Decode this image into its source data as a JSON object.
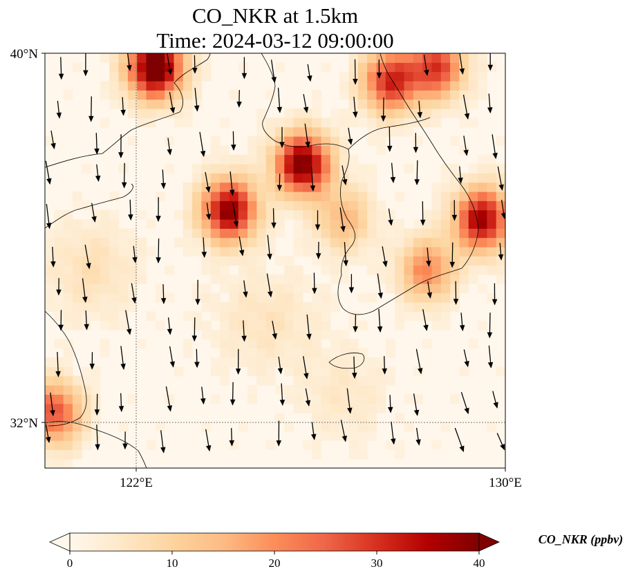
{
  "title_line1": "CO_NKR at 1.5km",
  "title_line2": "Time: 2024-03-12 09:00:00",
  "map": {
    "extent": {
      "lon": [
        120,
        130
      ],
      "lat": [
        31,
        40
      ]
    },
    "lat_ticks": [
      {
        "value": 40,
        "label": "40°N"
      },
      {
        "value": 32,
        "label": "32°N"
      }
    ],
    "lon_ticks": [
      {
        "value": 122,
        "label": "122°E"
      },
      {
        "value": 130,
        "label": "130°E"
      }
    ],
    "gridlines": {
      "lat": [
        32
      ],
      "lon": [
        122
      ]
    }
  },
  "colorbar": {
    "label": "CO_NKR (ppbv)",
    "ticks": [
      0,
      10,
      20,
      30,
      40
    ],
    "range": [
      0,
      40
    ],
    "extend": "both",
    "colormap": [
      "#fff7ec",
      "#fee8c8",
      "#fdd49e",
      "#fdbb84",
      "#fc8d59",
      "#ef6548",
      "#d7301f",
      "#b30000",
      "#7f0000"
    ]
  },
  "chart_data": {
    "type": "heatmap",
    "title": "CO_NKR at 1.5km\nTime: 2024-03-12 09:00:00",
    "variable": "CO_NKR",
    "units": "ppbv",
    "value_range": [
      0,
      40
    ],
    "hotspots": [
      {
        "lon": 122.4,
        "lat": 39.7,
        "value": 44
      },
      {
        "lon": 125.6,
        "lat": 37.6,
        "value": 40
      },
      {
        "lon": 124.0,
        "lat": 36.6,
        "value": 38
      },
      {
        "lon": 129.5,
        "lat": 36.4,
        "value": 36
      },
      {
        "lon": 127.5,
        "lat": 39.4,
        "value": 30
      },
      {
        "lon": 128.5,
        "lat": 39.7,
        "value": 28
      },
      {
        "lon": 120.2,
        "lat": 32.2,
        "value": 26
      },
      {
        "lon": 128.3,
        "lat": 35.3,
        "value": 20
      },
      {
        "lon": 126.5,
        "lat": 36.4,
        "value": 14
      }
    ],
    "wind": "northerly, from north to north-northwest"
  }
}
